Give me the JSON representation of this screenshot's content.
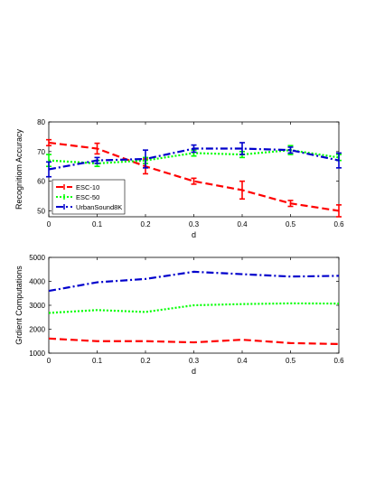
{
  "chart_data": [
    {
      "type": "line",
      "xlabel": "d",
      "ylabel": "Recognitiom Accuracy",
      "xlim": [
        0,
        0.6
      ],
      "ylim": [
        48,
        80
      ],
      "xticks": [
        "0",
        "0.1",
        "0.2",
        "0.3",
        "0.4",
        "0.5",
        "0.6"
      ],
      "yticks": [
        "50",
        "60",
        "70",
        "80"
      ],
      "ytick_values": [
        50,
        60,
        70,
        80
      ],
      "grid": false,
      "legend_position": "bottom-left",
      "x": [
        0,
        0.1,
        0.2,
        0.3,
        0.4,
        0.5,
        0.6
      ],
      "series": [
        {
          "name": "ESC-10",
          "color": "#ff0000",
          "style": "dashed",
          "values": [
            73,
            71,
            65,
            60,
            57,
            52.5,
            50
          ],
          "errors": [
            1.0,
            1.8,
            2.5,
            1.0,
            3.0,
            1.0,
            2.0
          ]
        },
        {
          "name": "ESC-50",
          "color": "#00ff00",
          "style": "dotted",
          "values": [
            67,
            66,
            67,
            69.5,
            69,
            70.5,
            68
          ],
          "errors": [
            2.0,
            1.0,
            1.0,
            1.0,
            1.0,
            1.5,
            1.0
          ]
        },
        {
          "name": "UrbanSound8K",
          "color": "#0000cc",
          "style": "dashdot",
          "values": [
            64,
            67,
            67.5,
            71,
            71,
            70.5,
            67
          ],
          "errors": [
            2.5,
            1.0,
            3.0,
            1.2,
            2.0,
            1.0,
            2.5
          ]
        }
      ]
    },
    {
      "type": "line",
      "xlabel": "d",
      "ylabel": "Grdient Computations",
      "xlim": [
        0,
        0.6
      ],
      "ylim": [
        1000,
        5000
      ],
      "xticks": [
        "0",
        "0.1",
        "0.2",
        "0.3",
        "0.4",
        "0.5",
        "0.6"
      ],
      "yticks": [
        "1000",
        "2000",
        "3000",
        "4000",
        "5000"
      ],
      "ytick_values": [
        1000,
        2000,
        3000,
        4000,
        5000
      ],
      "grid": false,
      "x": [
        0,
        0.1,
        0.2,
        0.3,
        0.4,
        0.5,
        0.6
      ],
      "series": [
        {
          "color": "#ff0000",
          "style": "dashed",
          "values": [
            1610,
            1500,
            1500,
            1450,
            1560,
            1420,
            1380
          ]
        },
        {
          "color": "#00ff00",
          "style": "dotted",
          "values": [
            2680,
            2800,
            2720,
            3000,
            3050,
            3080,
            3070
          ]
        },
        {
          "color": "#0000cc",
          "style": "dashdot",
          "values": [
            3600,
            3960,
            4100,
            4400,
            4300,
            4200,
            4230
          ]
        }
      ]
    }
  ]
}
